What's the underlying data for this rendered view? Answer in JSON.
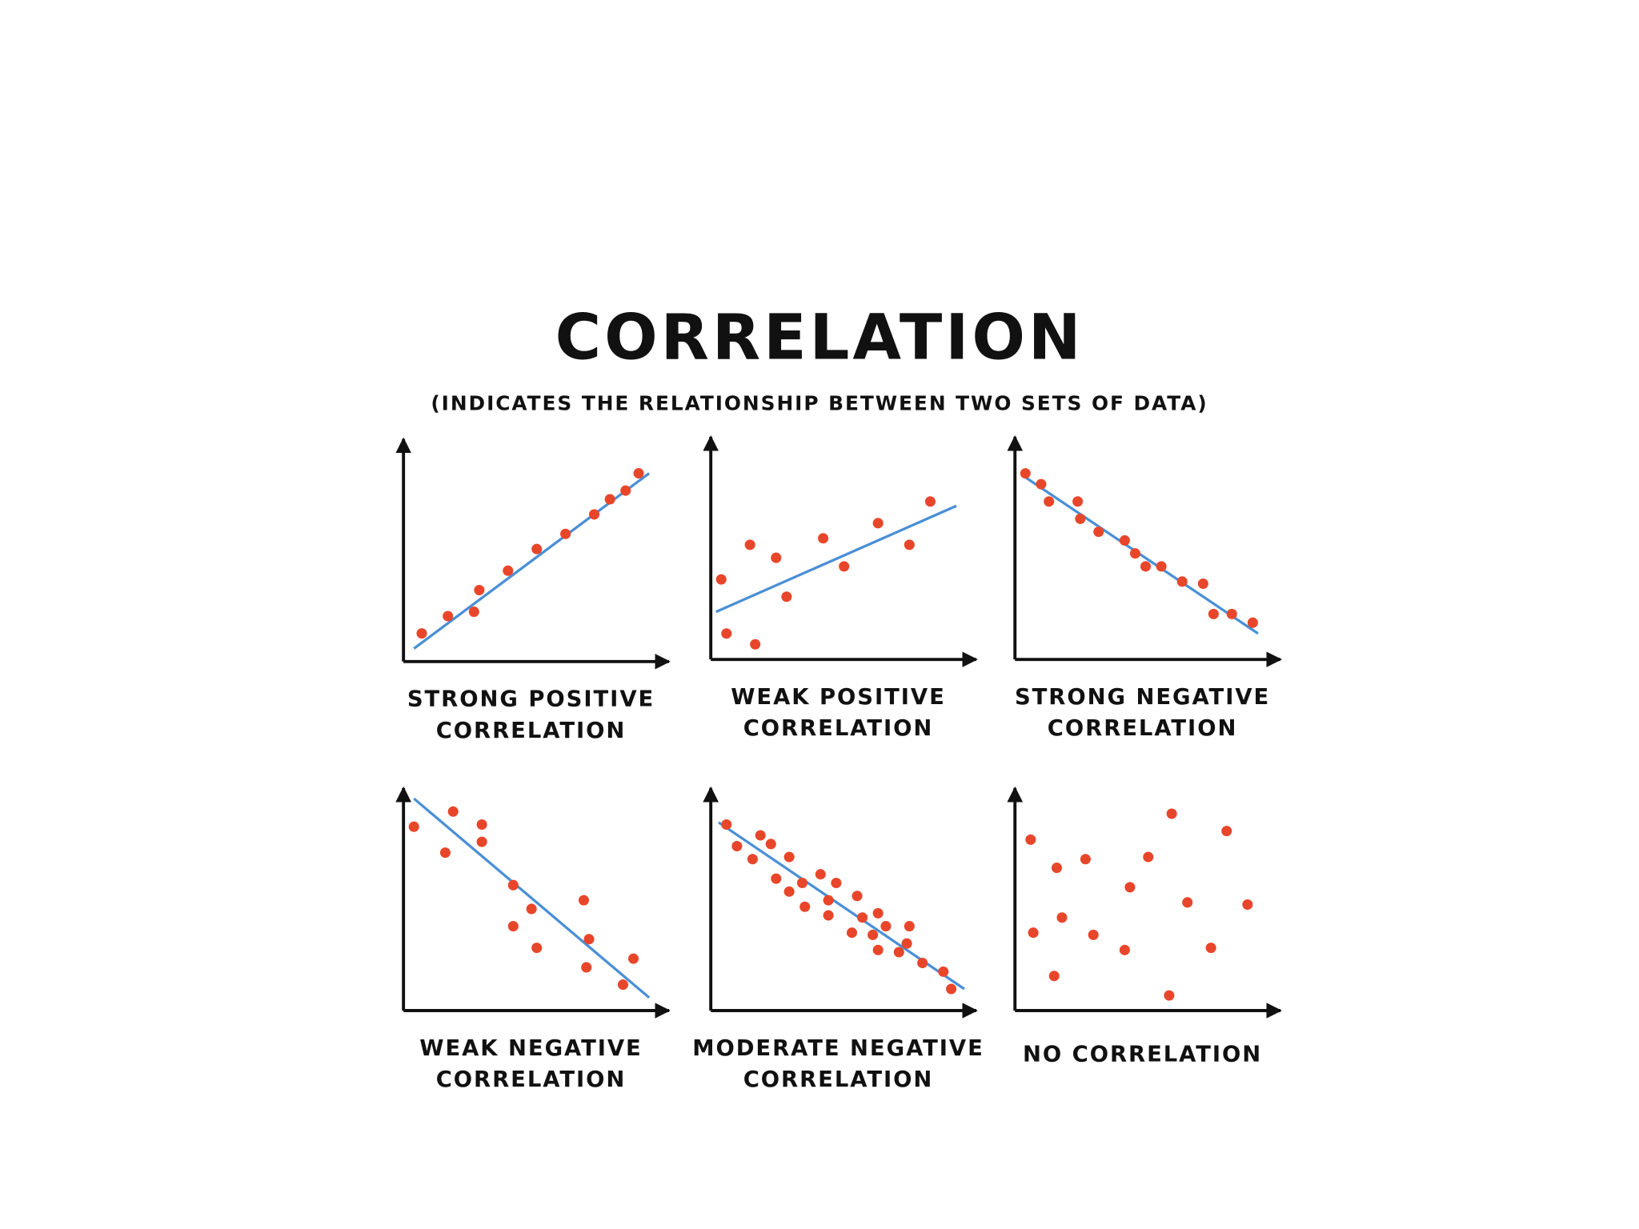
{
  "title": "CORRELATION",
  "subtitle": "(INDICATES THE RELATIONSHIP BETWEEN TWO SETS OF DATA)",
  "chart_data": [
    {
      "type": "scatter",
      "label": [
        "STRONG POSITIVE",
        "CORRELATION"
      ],
      "xlim": [
        0,
        100
      ],
      "ylim": [
        0,
        100
      ],
      "color": "#e8462a",
      "x": [
        7,
        17,
        27,
        29,
        40,
        51,
        62,
        73,
        79,
        85,
        90
      ],
      "values": [
        13,
        21,
        23,
        33,
        42,
        52,
        59,
        68,
        75,
        79,
        87
      ],
      "trend_line": {
        "color": "#4a8fd6",
        "x": [
          4,
          94
        ],
        "values": [
          6,
          87
        ]
      }
    },
    {
      "type": "scatter",
      "label": [
        "WEAK POSITIVE",
        "CORRELATION"
      ],
      "xlim": [
        0,
        100
      ],
      "ylim": [
        0,
        100
      ],
      "color": "#e8462a",
      "x": [
        4,
        6,
        15,
        17,
        25,
        29,
        43,
        51,
        64,
        76,
        84
      ],
      "values": [
        37,
        12,
        53,
        7,
        47,
        29,
        56,
        43,
        63,
        53,
        73
      ],
      "trend_line": {
        "color": "#4a8fd6",
        "x": [
          2,
          94
        ],
        "values": [
          22,
          71
        ]
      }
    },
    {
      "type": "scatter",
      "label": [
        "STRONG NEGATIVE",
        "CORRELATION"
      ],
      "xlim": [
        0,
        100
      ],
      "ylim": [
        0,
        100
      ],
      "color": "#e8462a",
      "x": [
        4,
        10,
        13,
        24,
        25,
        32,
        42,
        46,
        50,
        56,
        64,
        72,
        76,
        83,
        91
      ],
      "values": [
        86,
        81,
        73,
        73,
        65,
        59,
        55,
        49,
        43,
        43,
        36,
        35,
        21,
        21,
        17
      ],
      "trend_line": {
        "color": "#4a8fd6",
        "x": [
          3,
          93
        ],
        "values": [
          85,
          12
        ]
      }
    },
    {
      "type": "scatter",
      "label": [
        "WEAK NEGATIVE",
        "CORRELATION"
      ],
      "xlim": [
        0,
        100
      ],
      "ylim": [
        0,
        100
      ],
      "color": "#e8462a",
      "x": [
        4,
        16,
        19,
        30,
        30,
        42,
        42,
        49,
        51,
        69,
        71,
        70,
        84,
        88
      ],
      "values": [
        85,
        73,
        92,
        86,
        78,
        58,
        39,
        47,
        29,
        51,
        33,
        20,
        12,
        24
      ],
      "trend_line": {
        "color": "#4a8fd6",
        "x": [
          4,
          94
        ],
        "values": [
          98,
          6
        ]
      }
    },
    {
      "type": "scatter",
      "label": [
        "MODERATE NEGATIVE",
        "CORRELATION"
      ],
      "xlim": [
        0,
        100
      ],
      "ylim": [
        0,
        100
      ],
      "color": "#e8462a",
      "x": [
        6,
        10,
        16,
        19,
        23,
        25,
        30,
        30,
        35,
        36,
        42,
        45,
        45,
        48,
        54,
        56,
        58,
        62,
        64,
        64,
        67,
        72,
        75,
        76,
        81,
        89,
        92
      ],
      "values": [
        86,
        76,
        70,
        81,
        77,
        61,
        71,
        55,
        59,
        48,
        63,
        51,
        44,
        59,
        36,
        53,
        43,
        35,
        45,
        28,
        39,
        27,
        31,
        39,
        22,
        18,
        10
      ],
      "trend_line": {
        "color": "#4a8fd6",
        "x": [
          3,
          97
        ],
        "values": [
          87,
          10
        ]
      }
    },
    {
      "type": "scatter",
      "label": [
        "NO CORRELATION"
      ],
      "xlim": [
        0,
        100
      ],
      "ylim": [
        0,
        100
      ],
      "color": "#e8462a",
      "x": [
        6,
        16,
        27,
        18,
        7,
        15,
        30,
        42,
        44,
        51,
        60,
        66,
        81,
        75,
        59,
        89
      ],
      "values": [
        79,
        66,
        70,
        43,
        36,
        16,
        35,
        28,
        57,
        71,
        91,
        50,
        83,
        29,
        7,
        49
      ]
    }
  ]
}
